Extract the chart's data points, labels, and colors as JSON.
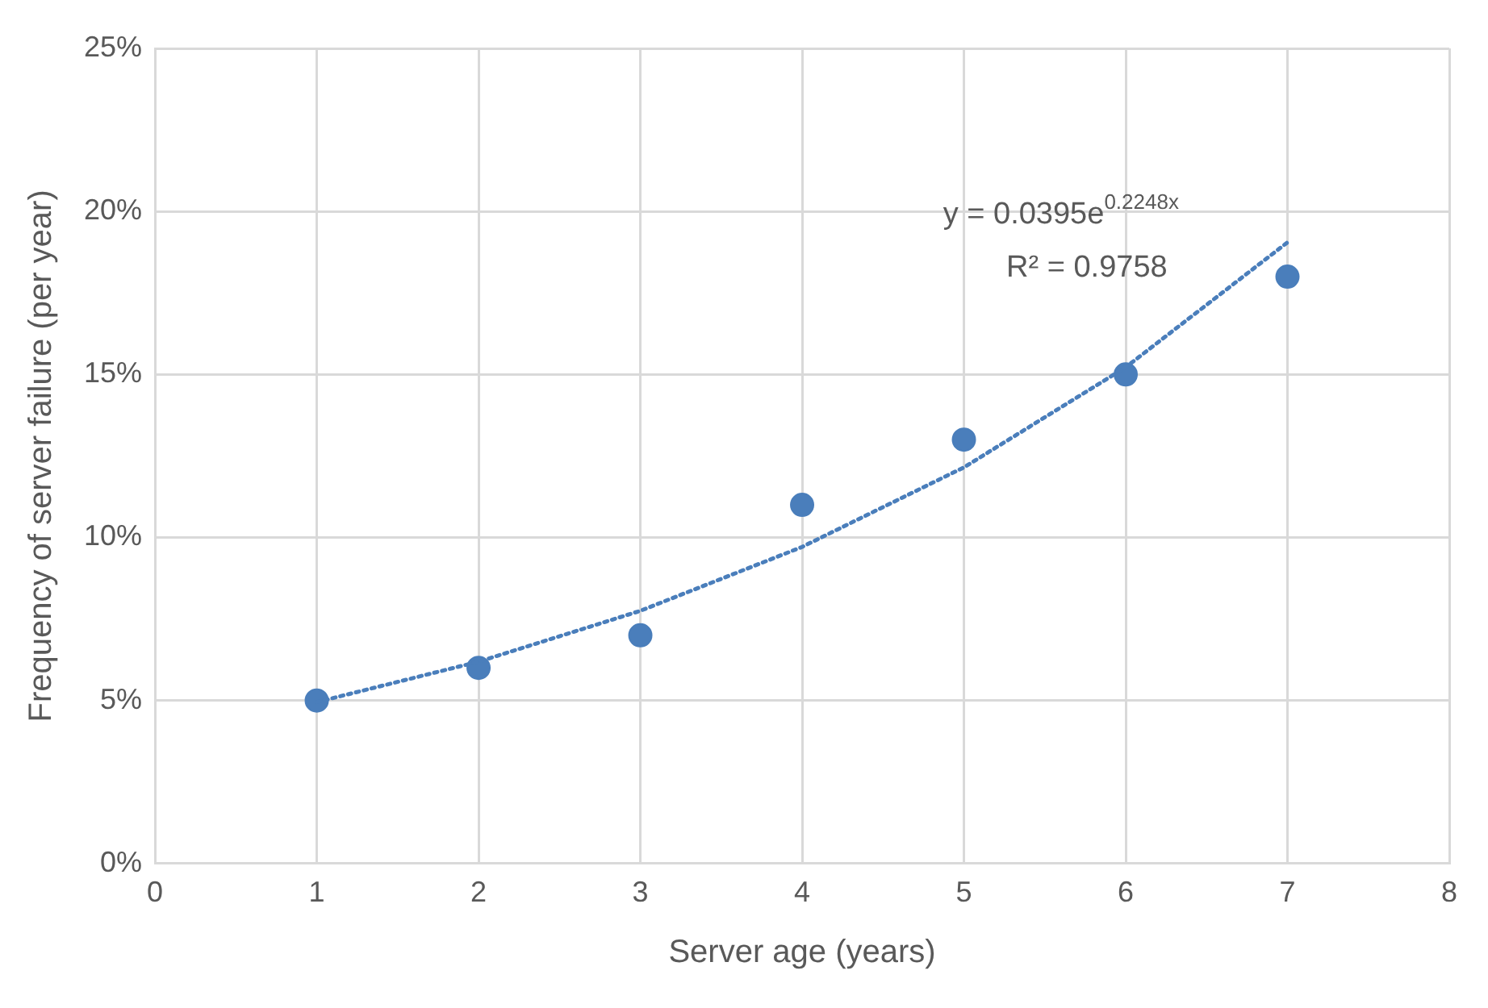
{
  "chart_data": {
    "type": "scatter",
    "xlabel": "Server age (years)",
    "ylabel": "Frequency of server failure (per year)",
    "xlim": [
      0,
      8
    ],
    "xticks": [
      0,
      1,
      2,
      3,
      4,
      5,
      6,
      7,
      8
    ],
    "ylim": [
      0,
      25
    ],
    "yticks": [
      {
        "value": 0,
        "label": "0%"
      },
      {
        "value": 5,
        "label": "5%"
      },
      {
        "value": 10,
        "label": "10%"
      },
      {
        "value": 15,
        "label": "15%"
      },
      {
        "value": 20,
        "label": "20%"
      },
      {
        "value": 25,
        "label": "25%"
      }
    ],
    "grid": true,
    "legend": false,
    "marker": "circle",
    "series": [
      {
        "color": "#4a7ebb",
        "x": [
          1,
          2,
          3,
          4,
          5,
          6,
          7
        ],
        "values": [
          5,
          6,
          7,
          11,
          13,
          15,
          18
        ]
      },
      {
        "type": "line",
        "color": "#4a7ebb",
        "line_style": "dotted",
        "marker": "none",
        "x": [
          1,
          2,
          3,
          4,
          5,
          6,
          7
        ],
        "values": [
          4.95,
          6.19,
          7.75,
          9.71,
          12.15,
          15.22,
          19.05
        ]
      }
    ],
    "annotations": [
      "y = 0.0395e$^{0.2248x}$",
      "R² = 0.9758"
    ]
  }
}
